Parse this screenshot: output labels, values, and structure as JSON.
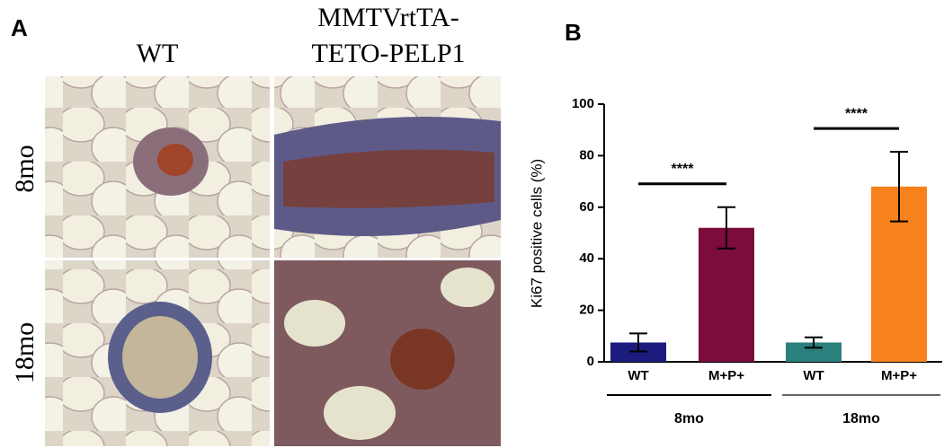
{
  "panel_a": {
    "label": "A",
    "columns": [
      [
        "WT"
      ],
      [
        "MMTVrtTA-",
        "TETO-PELP1"
      ]
    ],
    "rows": [
      "8mo",
      "18mo"
    ]
  },
  "chart_data": {
    "type": "bar",
    "panel_label": "B",
    "ylabel": "Ki67 positive cells (%)",
    "categories": [
      "WT",
      "M+P+",
      "WT",
      "M+P+"
    ],
    "values": [
      7.5,
      52,
      7.5,
      68
    ],
    "errors": [
      3.5,
      8,
      2,
      13.5
    ],
    "colors": [
      "#1c1c7e",
      "#7b0c3c",
      "#2b7f7c",
      "#f7811c"
    ],
    "groups": [
      "8mo",
      "18mo"
    ],
    "significance": [
      "****",
      "****"
    ],
    "ylim": [
      0,
      100
    ],
    "yticks": [
      0,
      20,
      40,
      60,
      80,
      100
    ]
  }
}
